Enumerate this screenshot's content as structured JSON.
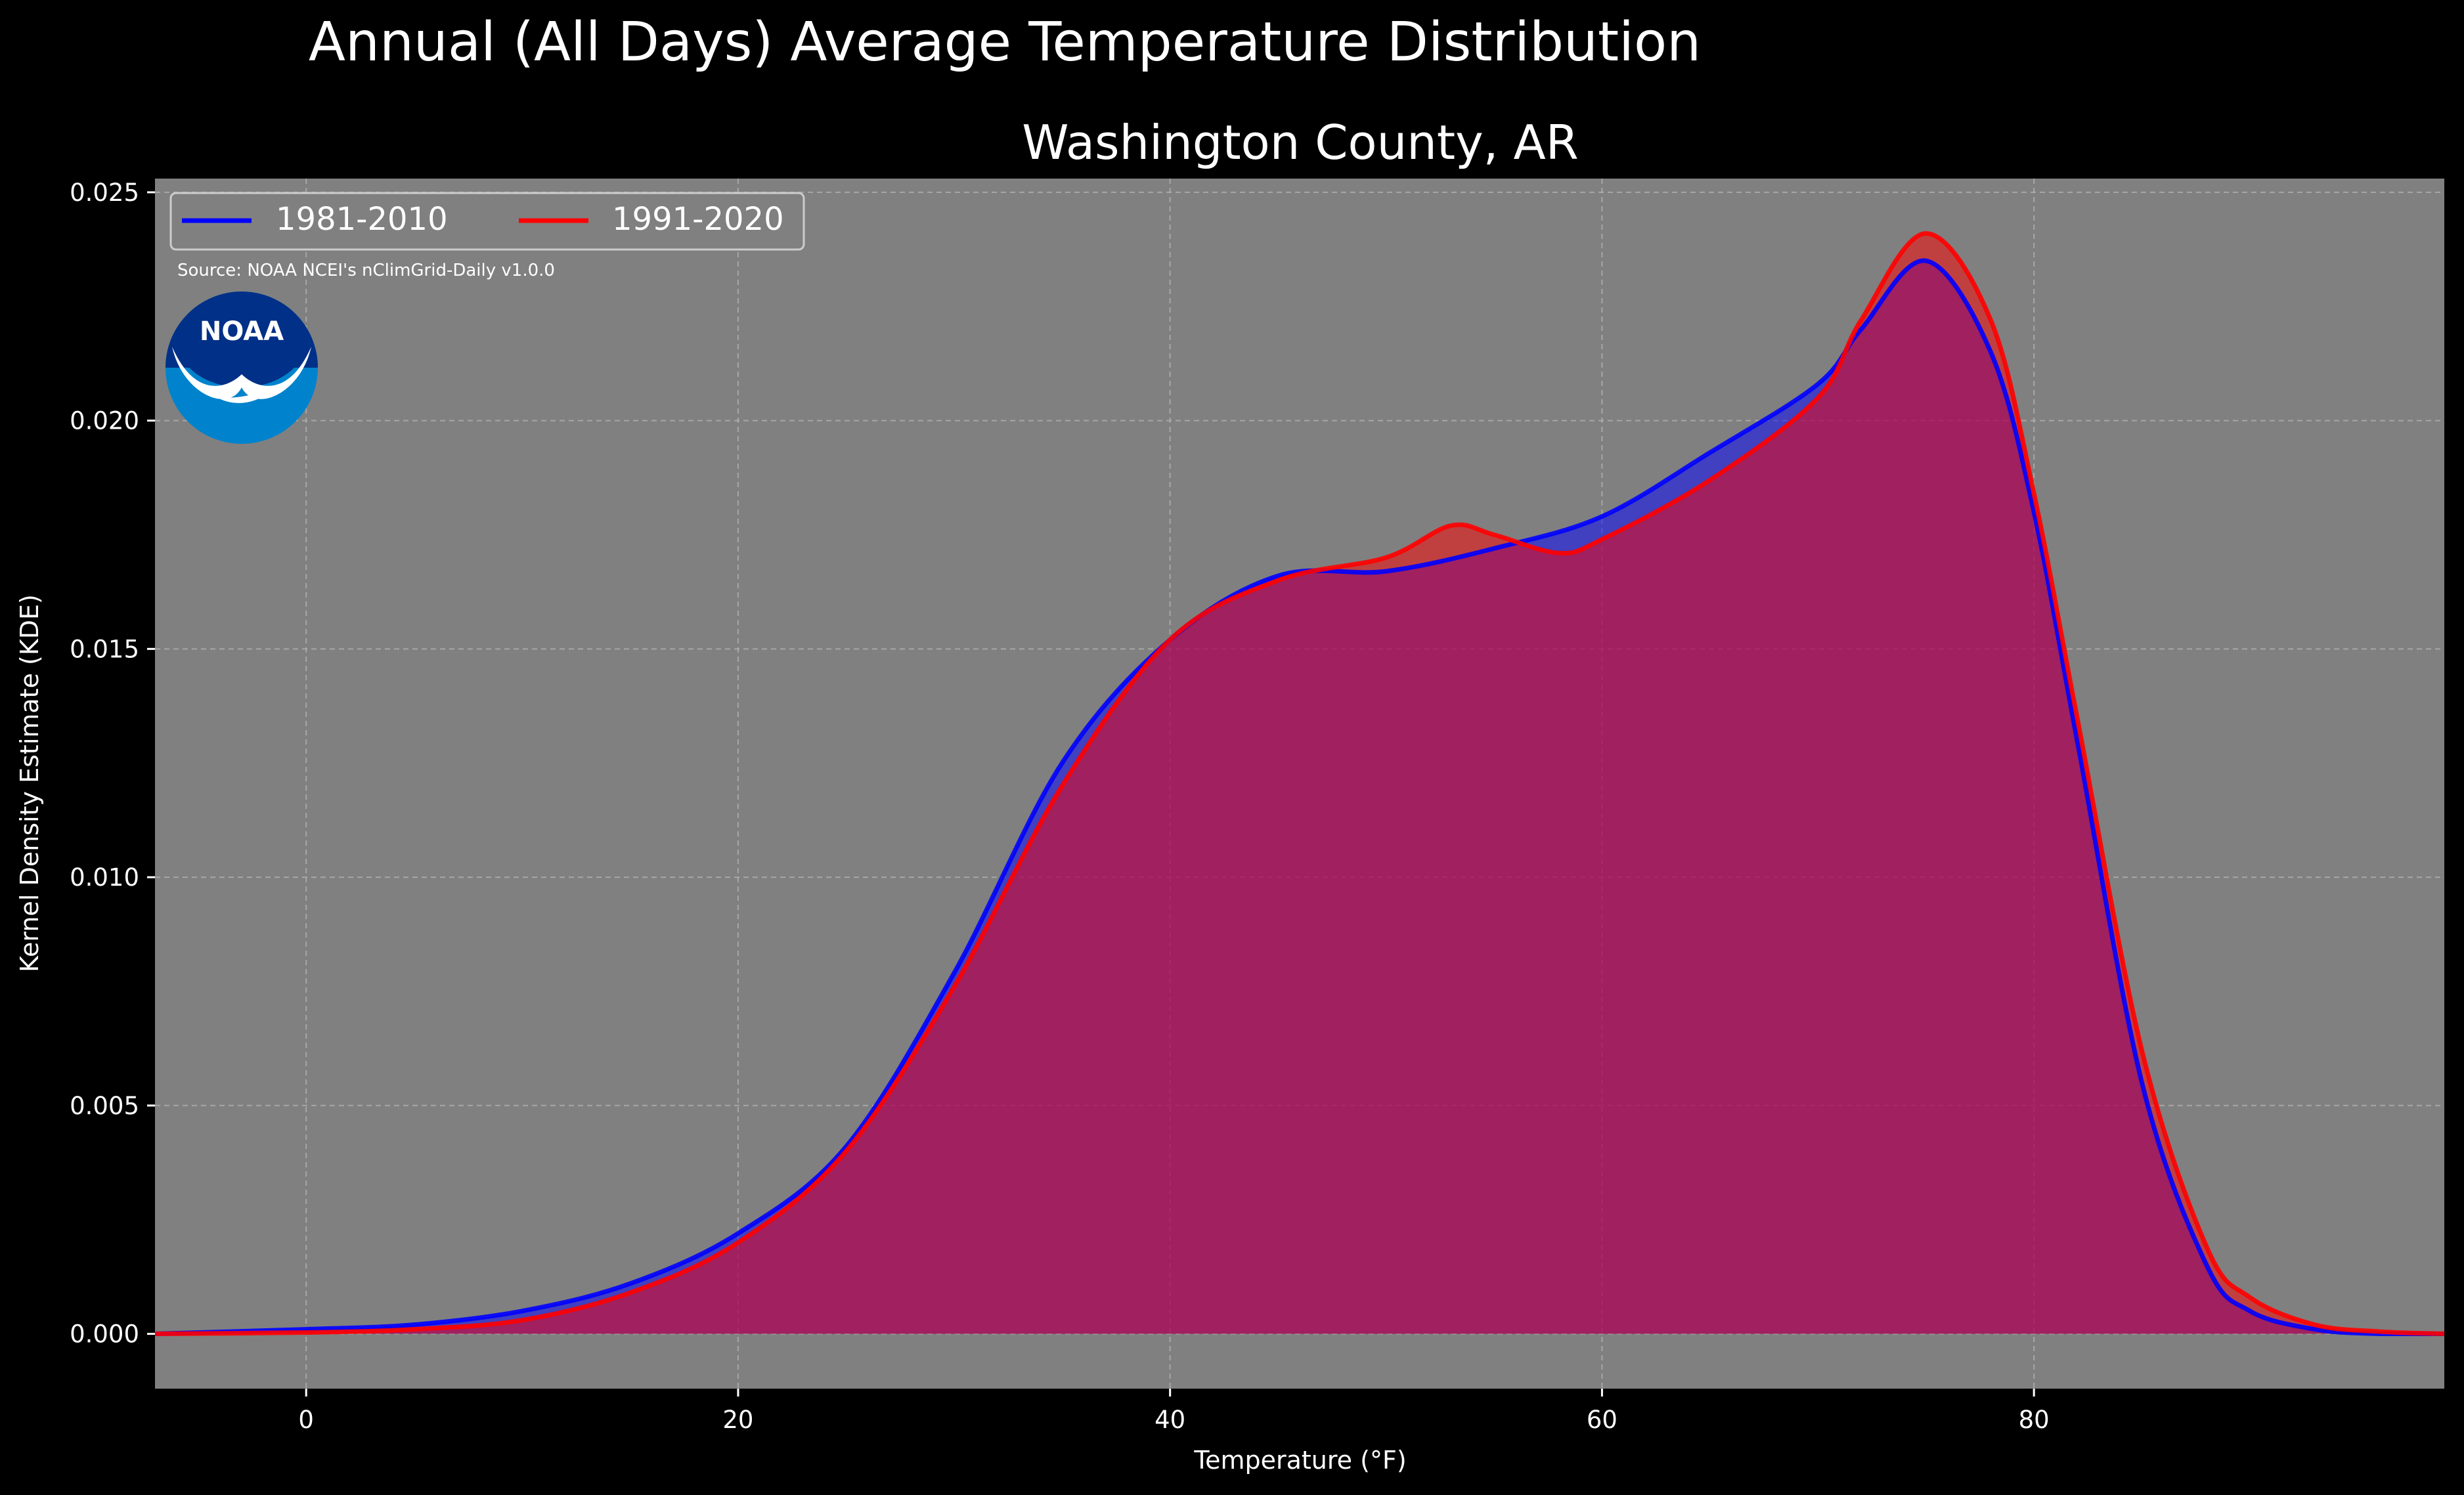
{
  "chart_data": {
    "type": "area",
    "title": "Annual (All Days) Average Temperature Distribution",
    "subtitle": "Washington County, AR",
    "xlabel": "Temperature ($^\\circ$F)",
    "xlabel_display": "Temperature (°F)",
    "ylabel": "Kernel Density Estimate (KDE)",
    "xlim": [
      -7,
      99
    ],
    "ylim": [
      -0.0012,
      0.0253
    ],
    "x_ticks": [
      0,
      20,
      40,
      60,
      80
    ],
    "x_tick_labels": [
      "0",
      "20",
      "40",
      "60",
      "80"
    ],
    "y_ticks": [
      0.0,
      0.005,
      0.01,
      0.015,
      0.02,
      0.025
    ],
    "y_tick_labels": [
      "0.000",
      "0.005",
      "0.010",
      "0.015",
      "0.020",
      "0.025"
    ],
    "grid": true,
    "legend_position": "top-left",
    "source_note": "Source: NOAA NCEI's nClimGrid-Daily v1.0.0",
    "logo_text": "NOAA",
    "colors": {
      "background": "#000000",
      "plot_background": "#808080",
      "text": "#ffffff",
      "series_1": "#0000ff",
      "series_2": "#ff0000",
      "overlap_fill": "#9c1f5c"
    },
    "series": [
      {
        "name": "1981-2010",
        "color": "#0000ff",
        "x": [
          -7,
          0,
          5,
          10,
          15,
          20,
          25,
          30,
          35,
          40,
          45,
          50,
          55,
          60,
          65,
          70,
          72,
          75,
          78,
          80,
          82,
          85,
          88,
          90,
          93,
          96,
          99
        ],
        "y": [
          0.0,
          0.0001,
          0.0002,
          0.0005,
          0.0011,
          0.0022,
          0.0041,
          0.0079,
          0.0125,
          0.0152,
          0.0166,
          0.0167,
          0.0172,
          0.0179,
          0.0193,
          0.0208,
          0.022,
          0.0235,
          0.0215,
          0.018,
          0.013,
          0.0055,
          0.0015,
          0.0005,
          0.0001,
          0.0,
          0.0
        ]
      },
      {
        "name": "1991-2020",
        "color": "#ff0000",
        "x": [
          -7,
          0,
          5,
          10,
          15,
          20,
          25,
          30,
          35,
          40,
          45,
          50,
          53,
          55,
          58,
          60,
          65,
          70,
          72,
          75,
          78,
          80,
          82,
          85,
          88,
          90,
          93,
          96,
          99
        ],
        "y": [
          0.0,
          3e-05,
          0.0001,
          0.0003,
          0.0009,
          0.002,
          0.004,
          0.0076,
          0.012,
          0.0152,
          0.0165,
          0.017,
          0.0177,
          0.0175,
          0.0171,
          0.0174,
          0.0187,
          0.0205,
          0.0222,
          0.0241,
          0.0222,
          0.0184,
          0.0135,
          0.0062,
          0.0019,
          0.0008,
          0.0002,
          5e-05,
          0.0
        ]
      }
    ]
  }
}
